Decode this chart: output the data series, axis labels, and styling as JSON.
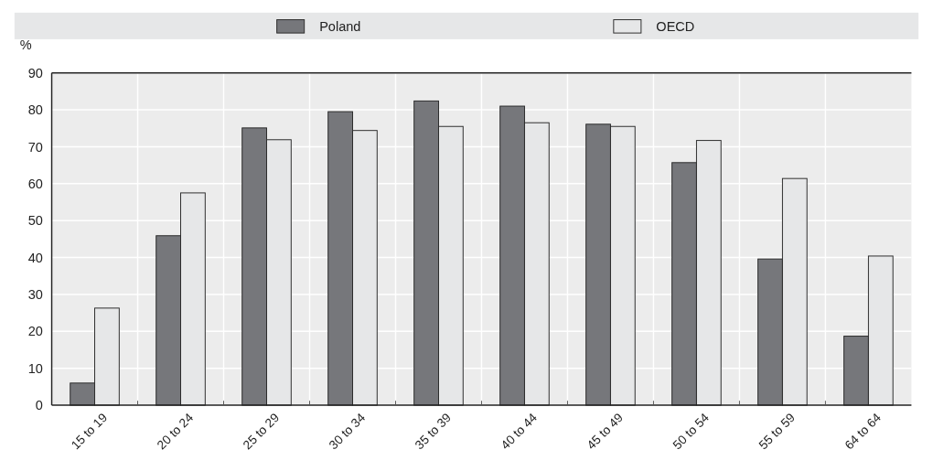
{
  "chart_data": {
    "type": "bar",
    "ylabel": "%",
    "categories": [
      "15 to 19",
      "20 to 24",
      "25 to 29",
      "30 to 34",
      "35 to 39",
      "40 to 44",
      "45 to 49",
      "50 to 54",
      "55 to 59",
      "64 to 64"
    ],
    "series": [
      {
        "name": "Poland",
        "color": "#76777b",
        "values": [
          6.0,
          45.9,
          75.1,
          79.5,
          82.4,
          81.0,
          76.1,
          65.7,
          39.6,
          18.7
        ]
      },
      {
        "name": "OECD",
        "color": "#e6e7e8",
        "values": [
          26.3,
          57.5,
          71.9,
          74.4,
          75.5,
          76.5,
          75.5,
          71.7,
          61.4,
          40.4
        ]
      }
    ],
    "ylim": [
      0,
      90
    ],
    "yticks": [
      0,
      10,
      20,
      30,
      40,
      50,
      60,
      70,
      80,
      90
    ],
    "grid": true,
    "legend": "top"
  }
}
